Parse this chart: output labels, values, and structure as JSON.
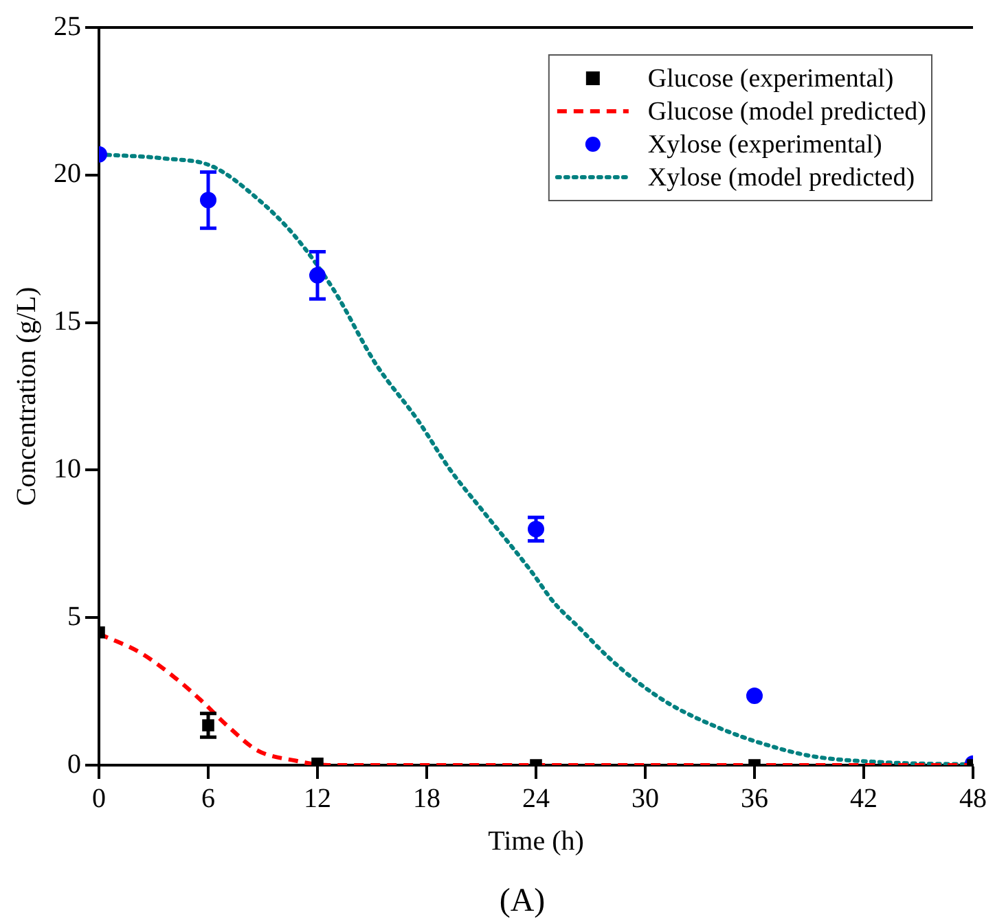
{
  "chart_data": {
    "type": "scatter",
    "xlabel": "Time (h)",
    "ylabel": "Concentration (g/L)",
    "annotations": [
      "(A)"
    ],
    "xlim": [
      0,
      48
    ],
    "xticks": [
      0,
      6,
      12,
      18,
      24,
      30,
      36,
      42,
      48
    ],
    "ylim": [
      0,
      25
    ],
    "yticks": [
      0,
      5,
      10,
      15,
      20,
      25
    ],
    "grid": false,
    "legend": "top right",
    "series": [
      {
        "name": "Glucose (experimental)",
        "marker": "square",
        "color": "#000000",
        "x": [
          0,
          6,
          12,
          24,
          36,
          48
        ],
        "values": [
          4.5,
          1.35,
          0.05,
          0,
          0,
          0
        ],
        "errors": [
          null,
          0.4,
          null,
          null,
          null,
          null
        ]
      },
      {
        "name": "Glucose (model predicted)",
        "type": "line",
        "marker": "none",
        "line_style": "dashed",
        "color": "#ff0000",
        "x": [
          0,
          2.3,
          4.4,
          5.6,
          7.2,
          8.7,
          10.8,
          12.6,
          20,
          30,
          40,
          48
        ],
        "values": [
          4.45,
          3.8,
          2.85,
          2.2,
          1.25,
          0.5,
          0.15,
          0,
          0,
          0,
          0,
          0
        ]
      },
      {
        "name": "Xylose (experimental)",
        "marker": "circle",
        "color": "#0000ff",
        "x": [
          0,
          6,
          12,
          24,
          36,
          48
        ],
        "values": [
          20.7,
          19.15,
          16.6,
          8.0,
          2.35,
          0.05
        ],
        "errors": [
          null,
          0.95,
          0.8,
          0.4,
          null,
          null
        ]
      },
      {
        "name": "Xylose (model predicted)",
        "type": "line",
        "marker": "none",
        "line_style": "dotted",
        "color": "#008080",
        "x": [
          0,
          3.6,
          6.2,
          8.7,
          10.8,
          12.9,
          15.2,
          17.5,
          19.3,
          21.1,
          23.7,
          25,
          26.3,
          27.9,
          29.4,
          31.4,
          34.1,
          36.6,
          39.2,
          43,
          48
        ],
        "values": [
          20.7,
          20.56,
          20.3,
          19.2,
          17.9,
          16.1,
          13.6,
          11.7,
          10.0,
          8.6,
          6.6,
          5.5,
          4.7,
          3.7,
          2.9,
          2.05,
          1.25,
          0.7,
          0.3,
          0.1,
          0.02
        ]
      }
    ]
  }
}
